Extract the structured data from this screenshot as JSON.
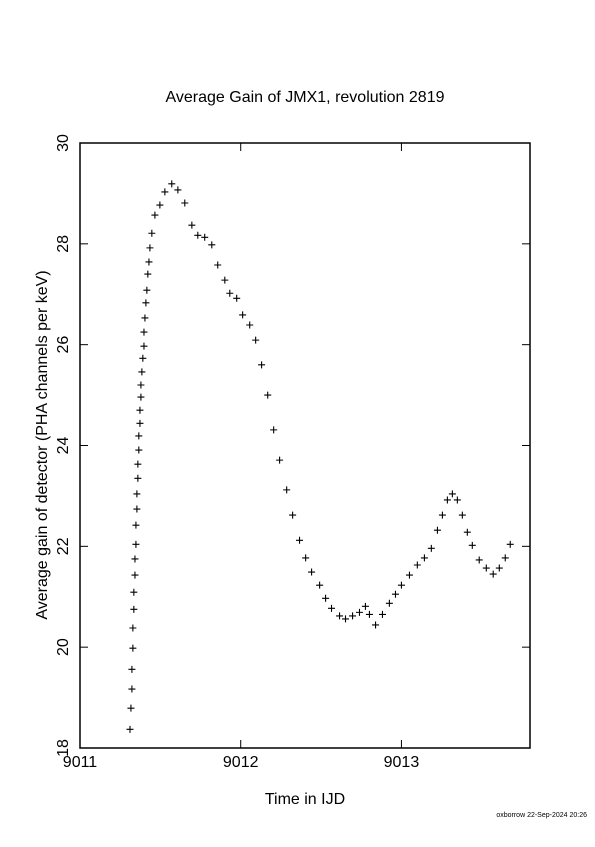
{
  "chart_data": {
    "type": "scatter",
    "title": "Average Gain of JMX1, revolution 2819",
    "x_label": "Time in IJD",
    "y_label": "Average gain of detector (PHA channels per keV)",
    "footer": "oxborrow 22-Sep-2024 20:26",
    "color": "#000000",
    "xlim": [
      9011,
      9013.8
    ],
    "ylim": [
      18,
      30
    ],
    "xticks": [
      9011,
      9012,
      9013
    ],
    "yticks": [
      18,
      20,
      22,
      24,
      26,
      28,
      30
    ],
    "x": [
      9011.311,
      9011.317,
      9011.323,
      9011.323,
      9011.329,
      9011.329,
      9011.335,
      9011.335,
      9011.342,
      9011.342,
      9011.348,
      9011.348,
      9011.354,
      9011.354,
      9011.36,
      9011.36,
      9011.366,
      9011.366,
      9011.373,
      9011.373,
      9011.379,
      9011.379,
      9011.385,
      9011.391,
      9011.398,
      9011.398,
      9011.404,
      9011.41,
      9011.416,
      9011.422,
      9011.429,
      9011.435,
      9011.447,
      9011.466,
      9011.497,
      9011.528,
      9011.571,
      9011.609,
      9011.652,
      9011.696,
      9011.733,
      9011.776,
      9011.82,
      9011.857,
      9011.901,
      9011.932,
      9011.975,
      9012.012,
      9012.056,
      9012.093,
      9012.13,
      9012.168,
      9012.205,
      9012.242,
      9012.286,
      9012.323,
      9012.366,
      9012.404,
      9012.441,
      9012.491,
      9012.528,
      9012.565,
      9012.615,
      9012.652,
      9012.696,
      9012.739,
      9012.776,
      9012.801,
      9012.839,
      9012.882,
      9012.925,
      9012.963,
      9013.0,
      9013.05,
      9013.099,
      9013.143,
      9013.186,
      9013.224,
      9013.255,
      9013.286,
      9013.317,
      9013.348,
      9013.379,
      9013.41,
      9013.441,
      9013.484,
      9013.528,
      9013.571,
      9013.609,
      9013.646,
      9013.677
    ],
    "values": [
      18.37,
      18.79,
      19.17,
      19.56,
      19.98,
      20.38,
      20.75,
      21.09,
      21.43,
      21.75,
      22.04,
      22.42,
      22.74,
      23.04,
      23.35,
      23.63,
      23.91,
      24.19,
      24.44,
      24.7,
      24.96,
      25.2,
      25.46,
      25.73,
      25.97,
      26.25,
      26.53,
      26.83,
      27.08,
      27.4,
      27.64,
      27.92,
      28.21,
      28.57,
      28.77,
      29.03,
      29.19,
      29.07,
      28.81,
      28.37,
      28.17,
      28.13,
      27.98,
      27.58,
      27.28,
      27.02,
      26.92,
      26.59,
      26.39,
      26.09,
      25.6,
      25.0,
      24.31,
      23.71,
      23.12,
      22.62,
      22.12,
      21.77,
      21.49,
      21.23,
      20.97,
      20.77,
      20.62,
      20.56,
      20.62,
      20.69,
      20.81,
      20.65,
      20.44,
      20.65,
      20.87,
      21.05,
      21.23,
      21.43,
      21.63,
      21.77,
      21.96,
      22.32,
      22.62,
      22.92,
      23.04,
      22.92,
      22.62,
      22.28,
      22.02,
      21.73,
      21.57,
      21.45,
      21.57,
      21.77,
      22.04
    ]
  }
}
